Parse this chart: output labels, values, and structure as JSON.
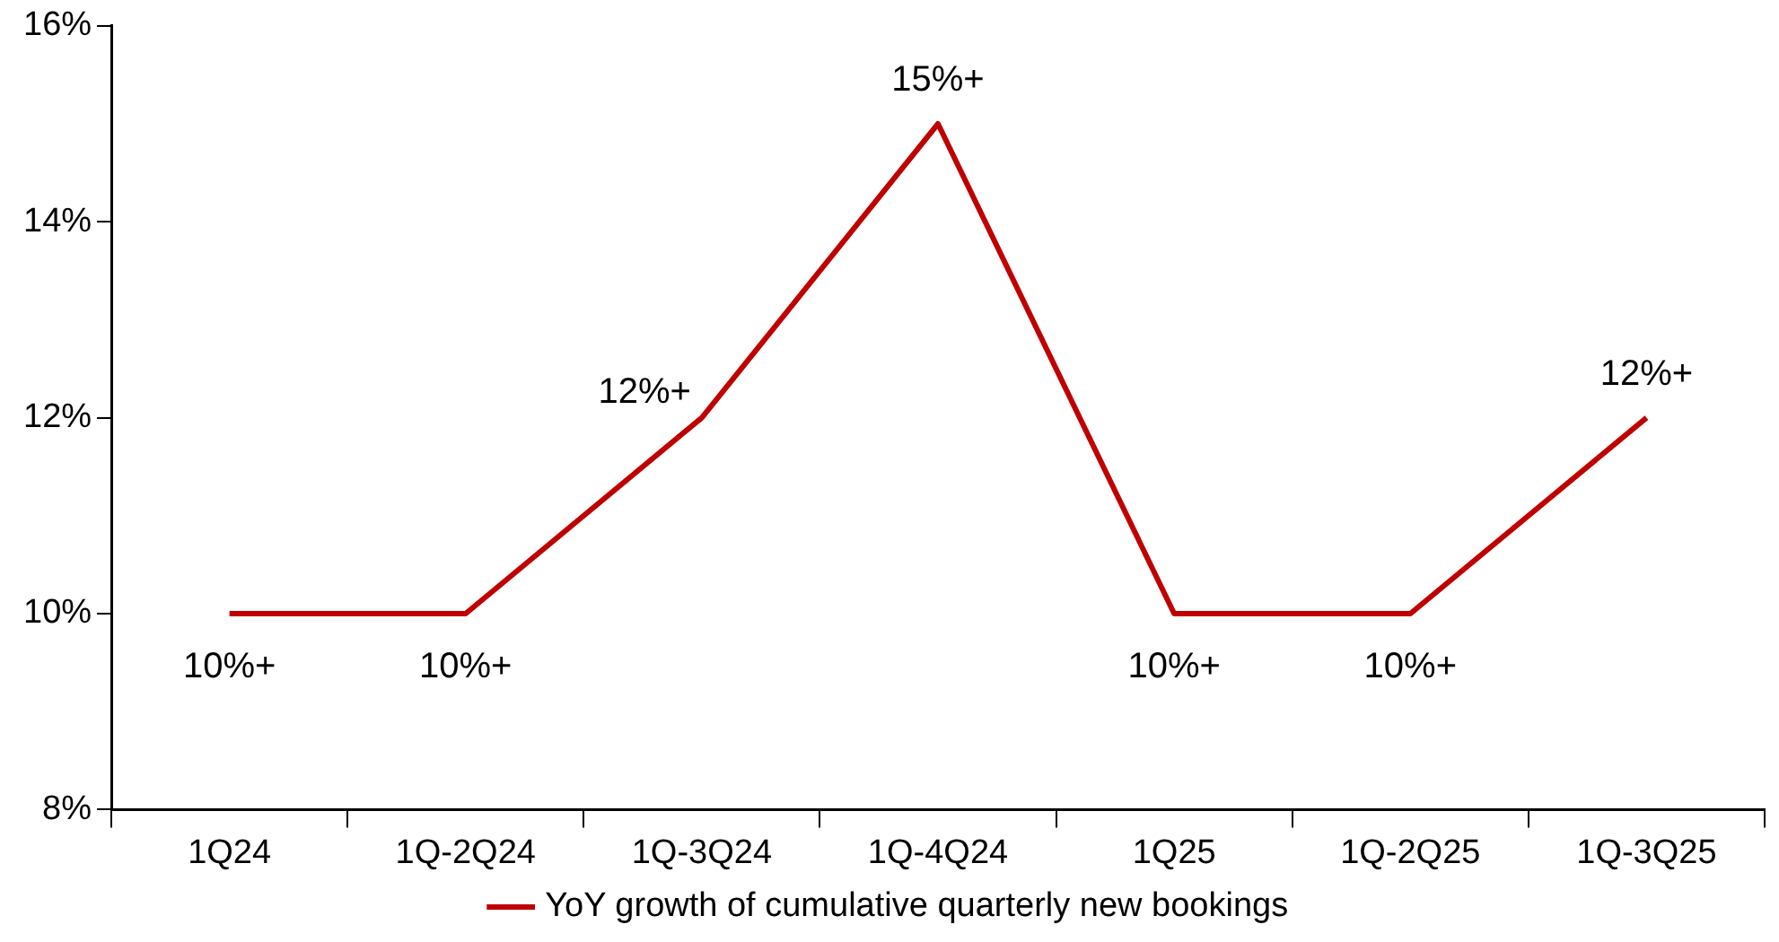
{
  "chart_data": {
    "type": "line",
    "categories": [
      "1Q24",
      "1Q-2Q24",
      "1Q-3Q24",
      "1Q-4Q24",
      "1Q25",
      "1Q-2Q25",
      "1Q-3Q25"
    ],
    "series": [
      {
        "name": "YoY growth of cumulative quarterly new bookings",
        "color": "#c00000",
        "values": [
          10,
          10,
          12,
          15,
          10,
          10,
          12
        ],
        "value_labels": [
          "10%+",
          "10%+",
          "12%+",
          "15%+",
          "10%+",
          "10%+",
          "12%+"
        ]
      }
    ],
    "ylim": [
      8,
      16
    ],
    "yticks": [
      {
        "value": 8,
        "label": "8%"
      },
      {
        "value": 10,
        "label": "10%"
      },
      {
        "value": 12,
        "label": "12%"
      },
      {
        "value": 14,
        "label": "14%"
      },
      {
        "value": 16,
        "label": "16%"
      }
    ],
    "grid": false,
    "legend": "bottom",
    "marker": "none",
    "line_style": "solid"
  }
}
